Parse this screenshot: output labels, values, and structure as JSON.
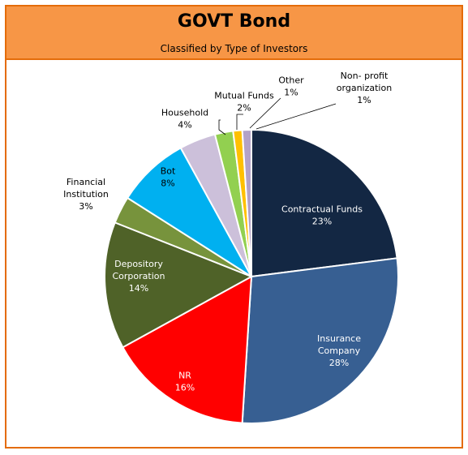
{
  "header": {
    "title": "GOVT Bond",
    "subtitle": "Classified by Type of Investors"
  },
  "chart_data": {
    "type": "pie",
    "title": "GOVT Bond",
    "subtitle": "Classified by Type of Investors",
    "start_angle_deg": 0,
    "direction": "clockwise",
    "slices": [
      {
        "label": "Contractual Funds",
        "value": 23,
        "value_label": "23%",
        "color": "#132743",
        "label_lines": [
          "Contractual Funds",
          "23%"
        ],
        "label_color": "#ffffff",
        "label_inside": true
      },
      {
        "label": "Insurance Company",
        "value": 28,
        "value_label": "28%",
        "color": "#375F92",
        "label_lines": [
          "Insurance",
          "Company",
          "28%"
        ],
        "label_color": "#ffffff",
        "label_inside": true
      },
      {
        "label": "NR",
        "value": 16,
        "value_label": "16%",
        "color": "#FF0000",
        "label_lines": [
          "NR",
          "16%"
        ],
        "label_color": "#ffffff",
        "label_inside": true
      },
      {
        "label": "Depository Corporation",
        "value": 14,
        "value_label": "14%",
        "color": "#4F6228",
        "label_lines": [
          "Depository",
          "Corporation",
          "14%"
        ],
        "label_color": "#ffffff",
        "label_inside": true
      },
      {
        "label": "Financial Institution",
        "value": 3,
        "value_label": "3%",
        "color": "#77933C",
        "label_lines": [
          "Financial",
          "Institution",
          "3%"
        ],
        "label_color": "#000000",
        "label_inside": false
      },
      {
        "label": "Bot",
        "value": 8,
        "value_label": "8%",
        "color": "#00B0F0",
        "label_lines": [
          "Bot",
          "8%"
        ],
        "label_color": "#000000",
        "label_inside": true
      },
      {
        "label": "Household",
        "value": 4,
        "value_label": "4%",
        "color": "#CCC0DA",
        "label_lines": [
          "Household",
          "4%"
        ],
        "label_color": "#000000",
        "label_inside": false
      },
      {
        "label": "Mutual Funds",
        "value": 2,
        "value_label": "2%",
        "color": "#92D050",
        "label_lines": [
          "Mutual Funds",
          "2%"
        ],
        "label_color": "#000000",
        "label_inside": false
      },
      {
        "label": "Other",
        "value": 1,
        "value_label": "1%",
        "color": "#FFC000",
        "label_lines": [
          "Other",
          "1%"
        ],
        "label_color": "#000000",
        "label_inside": false
      },
      {
        "label": "Non- profit organization",
        "value": 1,
        "value_label": "1%",
        "color": "#B3A2C7",
        "label_lines": [
          "Non- profit",
          "organization",
          "1%"
        ],
        "label_color": "#000000",
        "label_inside": false
      }
    ],
    "legend": "none"
  }
}
